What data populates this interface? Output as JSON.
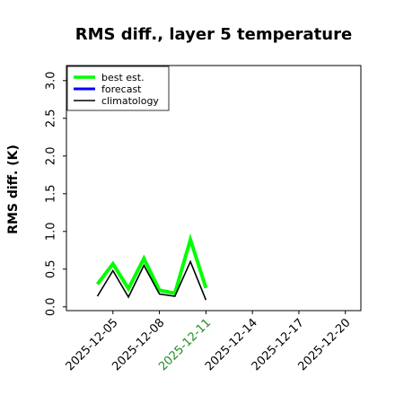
{
  "chart_data": {
    "type": "line",
    "title": "RMS diff., layer 5 temperature",
    "xlabel": "",
    "ylabel": "RMS diff. (K)",
    "ylim": [
      -0.05,
      3.2
    ],
    "yticks": [
      0.0,
      0.5,
      1.0,
      1.5,
      2.0,
      2.5,
      3.0
    ],
    "ytick_labels": [
      "0.0",
      "0.5",
      "1.0",
      "1.5",
      "2.0",
      "2.5",
      "3.0"
    ],
    "xlim": [
      "2025-12-02",
      "2025-12-21"
    ],
    "xticks": [
      "2025-12-05",
      "2025-12-08",
      "2025-12-11",
      "2025-12-14",
      "2025-12-17",
      "2025-12-20"
    ],
    "xtick_colors": [
      "#000000",
      "#000000",
      "#228B22",
      "#000000",
      "#000000",
      "#000000"
    ],
    "grid": false,
    "legend": "top-left",
    "x": [
      "2025-12-04",
      "2025-12-05",
      "2025-12-06",
      "2025-12-07",
      "2025-12-08",
      "2025-12-09",
      "2025-12-10",
      "2025-12-11"
    ],
    "series": [
      {
        "name": "best est.",
        "color": "#00ff00",
        "values": [
          0.3,
          0.57,
          0.24,
          0.64,
          0.22,
          0.18,
          0.89,
          0.25
        ]
      },
      {
        "name": "forecast",
        "color": "#0000ff",
        "values": [
          null,
          null,
          null,
          null,
          null,
          null,
          null,
          null
        ]
      },
      {
        "name": "climatology",
        "color": "#000000",
        "values": [
          0.14,
          0.48,
          0.13,
          0.55,
          0.17,
          0.14,
          0.6,
          0.09
        ]
      }
    ]
  }
}
